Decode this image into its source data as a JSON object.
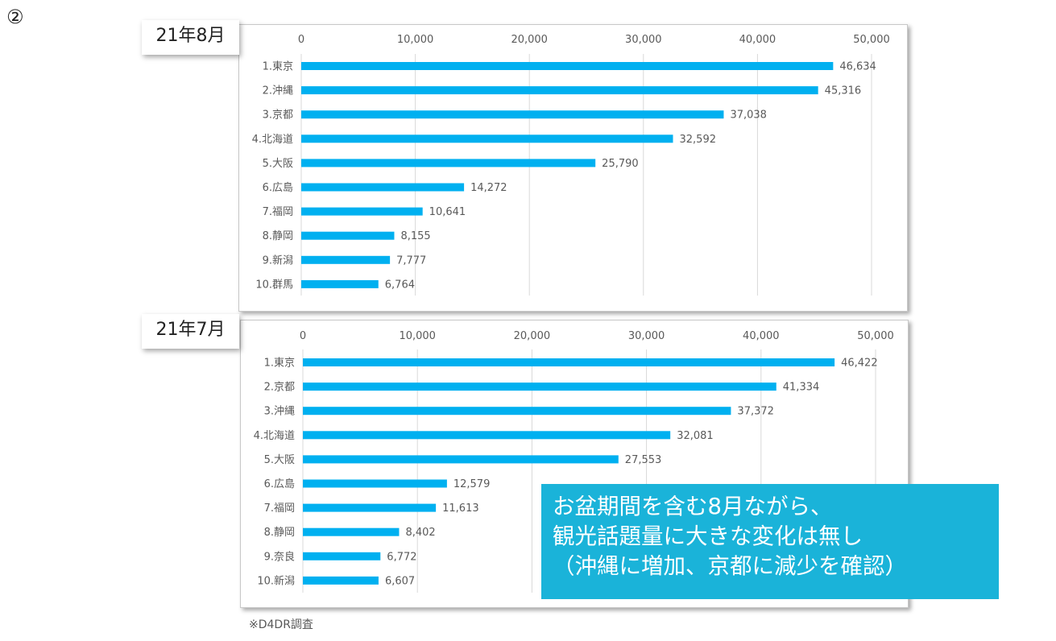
{
  "slide_number": "②",
  "charts": [
    {
      "month_label": "21年8月"
    },
    {
      "month_label": "21年7月"
    }
  ],
  "chart_data": [
    {
      "type": "bar",
      "orientation": "horizontal",
      "title": "",
      "categories": [
        "1.東京",
        "2.沖縄",
        "3.京都",
        "4.北海道",
        "5.大阪",
        "6.広島",
        "7.福岡",
        "8.静岡",
        "9.新潟",
        "10.群馬"
      ],
      "values": [
        46634,
        45316,
        37038,
        32592,
        25790,
        14272,
        10641,
        8155,
        7777,
        6764
      ],
      "value_labels": [
        "46,634",
        "45,316",
        "37,038",
        "32,592",
        "25,790",
        "14,272",
        "10,641",
        "8,155",
        "7,777",
        "6,764"
      ],
      "xlim": [
        0,
        50000
      ],
      "x_ticks": [
        0,
        10000,
        20000,
        30000,
        40000,
        50000
      ],
      "x_tick_labels": [
        "0",
        "10,000",
        "20,000",
        "30,000",
        "40,000",
        "50,000"
      ],
      "x_axis_position": "top",
      "grid": true,
      "bar_color": "#00b0f0"
    },
    {
      "type": "bar",
      "orientation": "horizontal",
      "title": "",
      "categories": [
        "1.東京",
        "2.京都",
        "3.沖縄",
        "4.北海道",
        "5.大阪",
        "6.広島",
        "7.福岡",
        "8.静岡",
        "9.奈良",
        "10.新潟"
      ],
      "values": [
        46422,
        41334,
        37372,
        32081,
        27553,
        12579,
        11613,
        8402,
        6772,
        6607
      ],
      "value_labels": [
        "46,422",
        "41,334",
        "37,372",
        "32,081",
        "27,553",
        "12,579",
        "11,613",
        "8,402",
        "6,772",
        "6,607"
      ],
      "xlim": [
        0,
        50000
      ],
      "x_ticks": [
        0,
        10000,
        20000,
        30000,
        40000,
        50000
      ],
      "x_tick_labels": [
        "0",
        "10,000",
        "20,000",
        "30,000",
        "40,000",
        "50,000"
      ],
      "x_axis_position": "top",
      "grid": true,
      "bar_color": "#00b0f0"
    }
  ],
  "callout": {
    "lines": [
      "お盆期間を含む8月ながら、",
      "観光話題量に大きな変化は無し",
      "（沖縄に増加、京都に減少を確認）"
    ],
    "background_color": "#1ab3d9"
  },
  "footnote": "※D4DR調査"
}
